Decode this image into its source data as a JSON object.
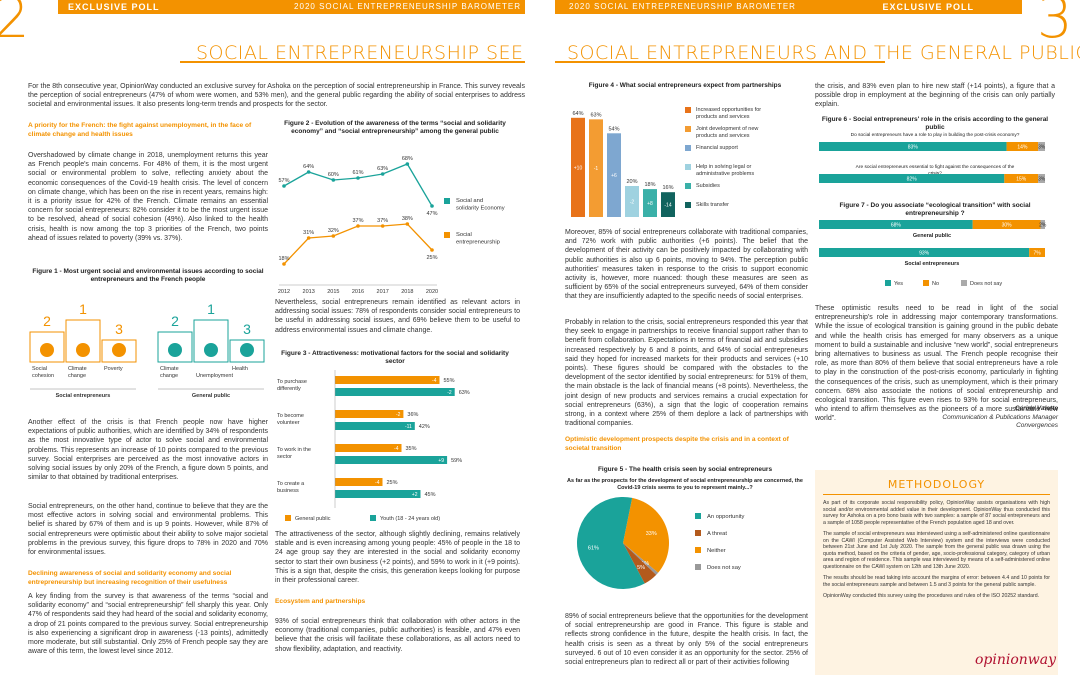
{
  "left": {
    "page_number": "2",
    "header_left": "EXCLUSIVE POLL",
    "header_right": "2020 SOCIAL ENTREPRENEURSHIP BAROMETER",
    "title": "SOCIAL ENTREPRENEURSHIP SEEN BY",
    "intro": "For the 8th consecutive year, OpinionWay conducted an exclusive survey for Ashoka on the perception of social entrepreneurship in France. This survey reveals the perception of social entrepreneurs (47% of whom were women, and 53% men), and the general public regarding the ability of social enterprises to address societal and environmental issues. It also presents long-term trends and prospects for the sector.",
    "sub1": "A priority for the French: the fight against unemployment, in the face of climate change and health issues",
    "p1": "Overshadowed by climate change in 2018, unemployment returns this year as French people's main concerns. For 48% of them, it is the most urgent social or environmental problem to solve, reflecting anxiety about the economic consequences of the Covid-19 health crisis. The level of concern on climate change, which has been on the rise in recent years, remains high: it is a priority issue for 42% of the French. Climate remains an essential concern for social entrepreneurs: 82% consider it to be the most urgent issue to be resolved, ahead of social cohesion (49%). Also linked to the health crisis, health is now among the top 3 priorities of the French, two points ahead of issues related to poverty (39% vs. 37%).",
    "fig1_title": "Figure 1 - Most urgent social and environmental issues according to social entrepreneurs and the French people",
    "fig1_se": [
      "Social cohesion",
      "Climate change",
      "Poverty"
    ],
    "fig1_se_ranks": [
      "2",
      "1",
      "3"
    ],
    "fig1_gp": [
      "Climate change",
      "Unemployment",
      "Health"
    ],
    "fig1_gp_ranks": [
      "2",
      "1",
      "3"
    ],
    "fig1_se_label": "Social entrepreneurs",
    "fig1_gp_label": "General public",
    "p2": "Another effect of the crisis is that French people now have higher expectations of public authorities, which are identified by 34% of respondents as the most innovative type of actor to solve social and environmental problems. This represents an increase of 10 points compared to the previous survey. Social enterprises are perceived as the most innovative actors in solving social issues by only 20% of the French, a figure down 5 points, and similar to that obtained by traditional enterprises.",
    "p3": "Social entrepreneurs, on the other hand, continue to believe that they are the most effective actors in solving social and environmental problems. This belief is shared by 67% of them and is up 9 points. However, while 87% of social entrepreneurs were optimistic about their ability to solve major societal problems in the previous survey, this figure drops to 78% in 2020 and 70% for environmental issues.",
    "sub2": "Declining awareness of social and solidarity economy and social entrepreneurship but increasing recognition of their usefulness",
    "p4": "A key finding from the survey is that awareness of the terms “social and solidarity economy” and “social entrepreneurship” fell sharply this year. Only 47% of respondents said they had heard of the social and solidarity economy, a drop of 21 points compared to the previous survey. Social entrepreneurship is also experiencing a significant drop in awareness (-13 points), admittedly more moderate, but still substantial. Only 25% of French people say they are aware of this term, the lowest level since 2012.",
    "fig2_title": "Figure 2 - Evolution of the awareness of the terms “social and solidarity economy” and “social entrepreneurship” among the general public",
    "p5": "Nevertheless, social entrepreneurs remain identified as relevant actors in addressing social issues: 78% of respondents consider social entrepreneurs to be useful in addressing social issues, and 69% believe them to be useful to address environmental issues and climate change.",
    "fig3_title": "Figure 3 - Attractiveness: motivational factors for the social and solidarity sector",
    "p6": "The attractiveness of the sector, although slightly declining, remains relatively stable and is even increasing among young people: 45% of people in the 18 to 24 age group say they are interested in the social and solidarity economy sector to start their own business (+2 points), and 59% to work in it (+9 points). This is a sign that, despite the crisis, this generation keeps looking for purpose in their professional career.",
    "sub3": "Ecosystem and partnerships",
    "p7": "93% of social entrepreneurs think that collaboration with other actors in the economy (traditional companies, public authorities) is feasible, and 47% even believe that the crisis will facilitate these collaborations, as all actors need to show flexibility, adaptation, and reactivity."
  },
  "right": {
    "page_number": "3",
    "header_left": "2020 SOCIAL ENTREPRENEURSHIP BAROMETER",
    "header_right": "EXCLUSIVE POLL",
    "title": "SOCIAL ENTREPRENEURS AND THE GENERAL PUBLIC",
    "fig4_title": "Figure 4 - What social entrepreneurs expect from partnerships",
    "p1": "Moreover, 85% of social entrepreneurs collaborate with traditional companies, and 72% work with public authorities (+6 points). The belief that the development of their activity can be positively impacted by collaborating with public authorities is also up 6 points, moving to 94%. The perception public authorities' measures taken in response to the crisis to support economic activity is, however, more nuanced: though these measures are seen as sufficient by 65% of the social entrepreneurs surveyed, 64% of them consider that they are insufficiently adapted to the specific needs of social enterprises.",
    "p2": "Probably in relation to the crisis, social entrepreneurs responded this year that they seek to engage in partnerships to receive financial support rather than to benefit from collaboration. Expectations in terms of financial aid and subsidies increased respectively by 6 and 8 points, and 64% of social entrepreneurs said they hoped for increased markets for their products and services (+10 points). These figures should be compared with the obstacles to the development of the sector identified by social entrepreneurs: for 51% of them, the main obstacle is the lack of financial means (+8 points). Nevertheless, the joint design of new products and services remains a crucial expectation for social entrepreneurs (63%), a sign that the logic of cooperation remains strong, in a context where 25% of them deplore a lack of partnerships with traditional companies.",
    "sub1": "Optimistic development prospects despite the crisis and in a context of societal transition",
    "fig5_title": "Figure 5 - The health crisis seen by social entrepreneurs",
    "fig5_question": "As far as the prospects for the development of social entrepreneurship are concerned, the Covid-19 crisis seems to you to represent mainly...?",
    "p3": "89% of social entrepreneurs believe that the opportunities for the development of social entrepreneurship are good in France. This figure is stable and reflects strong confidence in the future, despite the health crisis. In fact, the health crisis is seen as a threat by only 5% of the social entrepreneurs surveyed. 6 out of 10 even consider it as an opportunity for the sector. 25% of social entrepreneurs plan to redirect all or part of their activities following",
    "p4": "the crisis, and 83% even plan to hire new staff (+14 points), a figure that a possible drop in employment at the beginning of the crisis can only partially explain.",
    "fig6_title": "Figure 6 - Social entrepreneurs' role in the crisis according to the general public",
    "fig6_q1": "Do social entrepreneurs have a role to play in building the post-crisis economy?",
    "fig6_q2": "Are social entrepreneurs essential to fight against the consequences of the crisis?",
    "fig7_title": "Figure 7 - Do you associate “ecological transition” with social entrepreneurship ?",
    "fig7_gp": "General public",
    "fig7_se": "Social entrepreneurs",
    "p5": "These optimistic results need to be read in light of the social entrepreneurship's role in addressing major contemporary transformations. While the issue of ecological transition is gaining ground in the public debate and while the health crisis has emerged for many observers as a unique moment to build a sustainable and inclusive “new world”, social entrepreneurs bring alternatives to business as usual. The French people recognise their role, as more than 80% of them believe that social entrepreneurs have a role to play in the construction of the post-crisis economy, particularly in fighting the consequences of the crisis, such as unemployment, which is their primary concern. 68% also associate the notions of social entrepreneurship and ecological transition. This figure even rises to 93% for social entrepreneurs, who intend to affirm themselves as the pioneers of a more sustainable “new world”.",
    "signature_name": "Carine Valette",
    "signature_role": "Communication & Publications Manager",
    "signature_org": "Convergences",
    "method_title": "METHODOLOGY",
    "method_p1": "As part of its corporate social responsibility policy, OpinionWay assists organisations with high social and/or environmental added value in their development. OpinionWay thus conducted this survey for Ashoka on a pro bono basis with two samples: a sample of 87 social entrepreneurs and a sample of 1058 people representative of the French population aged 18 and over.",
    "method_p2": "The sample of social entrepreneurs was interviewed using a self-administered online questionnaire on the CAWI (Computer Assisted Web Interview) system and the interviews were conducted between 21st June and 1st July 2020. The sample from the general public was drawn using the quota method, based on the criteria of gender, age, socio-professional category, category of urban area and region of residence. This sample was interviewed by means of a self-administered online questionnaire on the CAWI system on 12th and 13th June 2020.",
    "method_p3": "The results should be read taking into account the margins of error: between 4.4 and 10 points for the social entrepreneurs sample and between 1.5 and 3 points for the general public sample.",
    "method_p4": "OpinionWay conducted this survey using the procedures and rules of the ISO 20252 standard.",
    "logo_text": "opinionway"
  },
  "chart_data": [
    {
      "type": "line",
      "title": "Figure 2 - Evolution of the awareness of the terms “social and solidarity economy” and “social entrepreneurship” among the general public",
      "x": [
        "2012",
        "2013",
        "2015",
        "2016",
        "2017",
        "2018",
        "2020"
      ],
      "series": [
        {
          "name": "Social and solidarity Economy",
          "values": [
            57,
            64,
            60,
            61,
            63,
            68,
            47
          ],
          "color": "#1aa39a"
        },
        {
          "name": "Social entrepreneurship",
          "values": [
            18,
            31,
            32,
            37,
            37,
            38,
            25
          ],
          "color": "#f39200"
        }
      ]
    },
    {
      "type": "bar",
      "title": "Figure 3 - Attractiveness: motivational factors for the social and solidarity sector",
      "categories": [
        "To purchase differently",
        "To become volunteer",
        "To work in the sector",
        "To create a business"
      ],
      "series": [
        {
          "name": "General public",
          "values": [
            55,
            36,
            35,
            25
          ],
          "changes": [
            "-4",
            "-2",
            "-4",
            "-4"
          ],
          "color": "#f39200"
        },
        {
          "name": "Youth (18 - 24 years old)",
          "values": [
            63,
            42,
            59,
            45
          ],
          "changes": [
            "-2",
            "-11",
            "+9",
            "+2"
          ],
          "color": "#1aa39a"
        }
      ]
    },
    {
      "type": "bar",
      "title": "Figure 4 - What social entrepreneurs expect from partnerships",
      "categories": [
        "Increased opportunities for products and services",
        "Joint development of new products and services",
        "Financial support",
        "Help in solving legal or administrative problems",
        "Subsidies",
        "Skills transfer"
      ],
      "values": [
        64,
        63,
        54,
        20,
        18,
        16
      ],
      "changes": [
        "+10",
        "-1",
        "+6",
        "-2",
        "+8",
        "-14"
      ],
      "colors": [
        "#e8731a",
        "#f39c32",
        "#7ea7d0",
        "#9fd2e0",
        "#3ab0a8",
        "#11635e"
      ]
    },
    {
      "type": "pie",
      "title": "Figure 5 - The health crisis seen by social entrepreneurs",
      "labels": [
        "An opportunity",
        "A threat",
        "Neither",
        "Does not say"
      ],
      "values": [
        61,
        5,
        33,
        1
      ],
      "colors": [
        "#1aa39a",
        "#b35a1c",
        "#f39200",
        "#999999"
      ]
    },
    {
      "type": "bar",
      "title": "Figure 6 - Social entrepreneurs' role in the crisis according to the general public",
      "categories": [
        "Do social entrepreneurs have a role to play in building the post-crisis economy?",
        "Are social entrepreneurs essential to fight against the consequences of the crisis?"
      ],
      "series": [
        {
          "name": "Yes",
          "values": [
            83,
            82
          ]
        },
        {
          "name": "No",
          "values": [
            14,
            15
          ]
        },
        {
          "name": "Does not say",
          "values": [
            3,
            3
          ]
        }
      ]
    },
    {
      "type": "bar",
      "title": "Figure 7 - Do you associate “ecological transition” with social entrepreneurship ?",
      "categories": [
        "General public",
        "Social entrepreneurs"
      ],
      "series": [
        {
          "name": "Yes",
          "values": [
            68,
            93
          ],
          "color": "#1aa39a"
        },
        {
          "name": "No",
          "values": [
            30,
            7
          ],
          "color": "#f39200"
        },
        {
          "name": "Does not say",
          "values": [
            2,
            0
          ],
          "color": "#aaaaaa"
        }
      ]
    }
  ]
}
